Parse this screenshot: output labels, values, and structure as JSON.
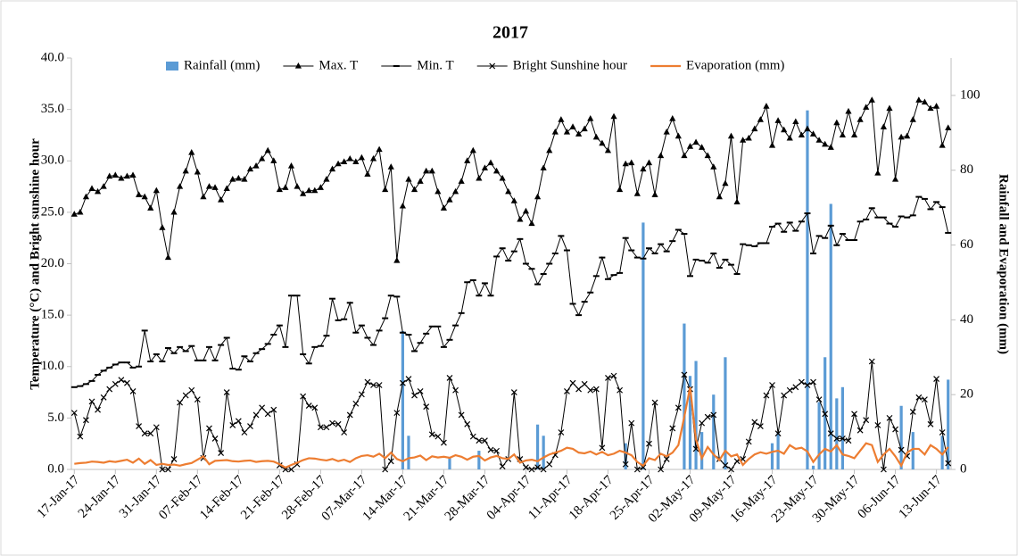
{
  "chart_data": {
    "type": "combo",
    "title": "2017",
    "y_label": "Temperature (°C) and Bright sunshine hour",
    "y2_label": "Rainfall and Evaporation (mm)",
    "legend": "top",
    "categories": [
      "17-Jan-17",
      null,
      null,
      null,
      null,
      null,
      null,
      "24-Jan-17",
      null,
      null,
      null,
      null,
      null,
      null,
      "31-Jan-17",
      null,
      null,
      null,
      null,
      null,
      null,
      "07-Feb-17",
      null,
      null,
      null,
      null,
      null,
      null,
      "14-Feb-17",
      null,
      null,
      null,
      null,
      null,
      null,
      "21-Feb-17",
      null,
      null,
      null,
      null,
      null,
      null,
      "28-Feb-17",
      null,
      null,
      null,
      null,
      null,
      null,
      "07-Mar-17",
      null,
      null,
      null,
      null,
      null,
      null,
      "14-Mar-17",
      null,
      null,
      null,
      null,
      null,
      null,
      "21-Mar-17",
      null,
      null,
      null,
      null,
      null,
      null,
      "28-Mar-17",
      null,
      null,
      null,
      null,
      null,
      null,
      "04-Apr-17",
      null,
      null,
      null,
      null,
      null,
      null,
      "11-Apr-17",
      null,
      null,
      null,
      null,
      null,
      null,
      "18-Apr-17",
      null,
      null,
      null,
      null,
      null,
      null,
      "25-Apr-17",
      null,
      null,
      null,
      null,
      null,
      null,
      "02-May-17",
      null,
      null,
      null,
      null,
      null,
      null,
      "09-May-17",
      null,
      null,
      null,
      null,
      null,
      null,
      "16-May-17",
      null,
      null,
      null,
      null,
      null,
      null,
      "23-May-17",
      null,
      null,
      null,
      null,
      null,
      null,
      "30-May-17",
      null,
      null,
      null,
      null,
      null,
      null,
      "06-Jun-17",
      null,
      null,
      null,
      null,
      null,
      null,
      "13-Jun-17",
      null,
      null
    ],
    "ylim": [
      0,
      40
    ],
    "yticks": [
      {
        "value": 0,
        "label": "0.0"
      },
      {
        "value": 5,
        "label": "5.0"
      },
      {
        "value": 10,
        "label": "10.0"
      },
      {
        "value": 15,
        "label": "15.0"
      },
      {
        "value": 20,
        "label": "20.0"
      },
      {
        "value": 25,
        "label": "25.0"
      },
      {
        "value": 30,
        "label": "30.0"
      },
      {
        "value": 35,
        "label": "35.0"
      },
      {
        "value": 40,
        "label": "40.0"
      }
    ],
    "y2lim": [
      0,
      110
    ],
    "y2ticks": [
      0,
      20,
      40,
      60,
      80,
      100
    ],
    "series": [
      {
        "name": "Rainfall (mm)",
        "type": "bar",
        "axis": "y2",
        "color": "#5b9bd5",
        "values": [
          0,
          0,
          0,
          0,
          0,
          0,
          0,
          0,
          0,
          0,
          0,
          0,
          0,
          0,
          0,
          0,
          0,
          0,
          0,
          0,
          0,
          0,
          0,
          0,
          0,
          0,
          0,
          0,
          0,
          0,
          0,
          0,
          0,
          0,
          0,
          0,
          0,
          0,
          0,
          0,
          0,
          0,
          0,
          0,
          0,
          0,
          0,
          0,
          0,
          0,
          0,
          0,
          0,
          0,
          0,
          0,
          37,
          9,
          0,
          0,
          0,
          0,
          0,
          0,
          3,
          0,
          0,
          0,
          0,
          5,
          0,
          0,
          0,
          0,
          0,
          0,
          0,
          0,
          0,
          12,
          9,
          0,
          0,
          0,
          0,
          0,
          0,
          0,
          0,
          0,
          0,
          0,
          0,
          0,
          7,
          0,
          0,
          66,
          0,
          0,
          0,
          0,
          0,
          0,
          39,
          25,
          29,
          10,
          0,
          20,
          0,
          30,
          0,
          0,
          0,
          0,
          0,
          0,
          0,
          7,
          10,
          0,
          0,
          0,
          0,
          96,
          1,
          18,
          30,
          71,
          19,
          22,
          0,
          0,
          0,
          0,
          0,
          0,
          0,
          0,
          0,
          17,
          0,
          10,
          0,
          0,
          0,
          0,
          9,
          24
        ]
      },
      {
        "name": "Max. T",
        "type": "line",
        "marker": "triangle",
        "color": "#000000",
        "values": [
          24.8,
          25,
          26.5,
          27.3,
          27,
          27.5,
          28.5,
          28.6,
          28.3,
          28.5,
          28.6,
          26.7,
          26.5,
          25.4,
          27.1,
          23.5,
          20.6,
          25,
          27.5,
          29,
          30.8,
          28.9,
          26.5,
          27.5,
          27.4,
          26.2,
          27.3,
          28.2,
          28.3,
          28.2,
          29.2,
          29.5,
          30.2,
          31,
          30,
          27.2,
          27.4,
          29.5,
          27.5,
          26.8,
          27.1,
          27.1,
          27.4,
          28.2,
          29.2,
          29.7,
          29.9,
          30.2,
          29.9,
          30.3,
          28.7,
          30.2,
          31.1,
          27.2,
          29.4,
          20.3,
          25.6,
          28.2,
          27.2,
          28,
          29,
          29,
          27,
          25.4,
          26.2,
          27,
          28,
          30,
          31,
          28.3,
          29.3,
          29.8,
          29,
          28.3,
          27,
          26.1,
          24.3,
          25.1,
          23.9,
          26.5,
          29.3,
          31,
          32.8,
          34,
          32.8,
          33.3,
          32.6,
          33.1,
          34.1,
          32.3,
          31.7,
          31,
          34.3,
          27.2,
          29.7,
          29.8,
          26.8,
          29.2,
          29.8,
          26.7,
          30.5,
          32.8,
          34.1,
          32.4,
          30.5,
          31.4,
          31.8,
          31.3,
          30.5,
          29.4,
          26.5,
          27.8,
          32.4,
          26,
          32,
          32.2,
          33.1,
          34,
          35.3,
          31.5,
          33.9,
          33,
          32.2,
          33.8,
          32.5,
          33.1,
          32.6,
          32,
          31.6,
          31.3,
          33.7,
          32.5,
          34.8,
          32.5,
          34,
          35.2,
          35.9,
          28.8,
          33.3,
          35.1,
          28.2,
          32.3,
          32.4,
          34,
          35.9,
          35.7,
          35.1,
          35.3,
          31.5,
          33.2
        ]
      },
      {
        "name": "Min. T",
        "type": "line",
        "marker": "dash",
        "color": "#000000",
        "values": [
          8,
          8.1,
          8.3,
          8.6,
          9.2,
          9.6,
          9.9,
          10.2,
          10.4,
          10.4,
          9.9,
          10,
          13.5,
          10.5,
          11.2,
          10.5,
          11.8,
          11.3,
          11.9,
          11.5,
          12,
          10.6,
          10.6,
          11.9,
          10.6,
          12.1,
          12.8,
          9.8,
          9.7,
          11,
          10.5,
          11.3,
          11.7,
          12.2,
          13.1,
          14,
          11.9,
          16.9,
          16.9,
          11.2,
          10.3,
          11.9,
          12,
          13,
          16.6,
          14.5,
          14.6,
          16.2,
          13.3,
          14,
          12.8,
          12.1,
          13.5,
          14.7,
          16.9,
          16.8,
          13.3,
          13.1,
          11.5,
          12.3,
          13.2,
          13.9,
          13.9,
          11.9,
          12.6,
          14,
          15.2,
          18.2,
          18.4,
          16.9,
          18.1,
          16.9,
          20.7,
          21.5,
          20.3,
          21.2,
          22.4,
          20,
          19.5,
          18,
          19,
          20,
          21,
          22.7,
          21.3,
          16.1,
          15,
          16.3,
          17.2,
          18.8,
          20.6,
          18.5,
          18.9,
          19.1,
          22.5,
          21.3,
          20.6,
          20.5,
          21.5,
          21,
          21.9,
          21.2,
          22.2,
          23.3,
          22.9,
          18.8,
          20.4,
          20.3,
          20.1,
          21,
          19.6,
          20.4,
          19.9,
          19,
          21.9,
          21.8,
          21.7,
          22,
          22,
          23.6,
          23.9,
          23.1,
          24,
          23.2,
          24.1,
          24.9,
          21,
          22.7,
          22.5,
          23.7,
          21.8,
          22.9,
          22.3,
          22.3,
          24.1,
          24.3,
          25.4,
          24.5,
          24.5,
          23.9,
          23.6,
          24.6,
          24.5,
          24.7,
          26.5,
          26.3,
          25.3,
          26,
          25.5,
          23
        ]
      },
      {
        "name": "Bright Sunshine hour",
        "type": "line",
        "marker": "cross",
        "color": "#000000",
        "values": [
          5.5,
          3.2,
          4.8,
          6.6,
          5.8,
          7,
          7.8,
          8.3,
          8.7,
          8.4,
          7.6,
          4.2,
          3.5,
          3.5,
          4.1,
          0,
          0,
          1,
          6.5,
          7.2,
          7.7,
          6.8,
          1.1,
          4,
          3,
          1.6,
          7.5,
          4.3,
          4.7,
          3.6,
          4.2,
          5.3,
          6,
          5.4,
          5.8,
          0.4,
          0,
          0,
          0.5,
          7.1,
          6.2,
          6,
          4.1,
          4.1,
          4.5,
          4.4,
          3.6,
          5.3,
          6.4,
          7.3,
          8.5,
          8.2,
          8.2,
          0,
          0.8,
          5.5,
          8.4,
          8.8,
          7.2,
          7.6,
          6.1,
          3.4,
          3.2,
          2.6,
          8.9,
          7.7,
          5.3,
          4.4,
          3.2,
          2.8,
          2.8,
          1.9,
          1.8,
          0.3,
          1,
          7.5,
          1,
          0.2,
          0,
          0.2,
          0,
          0.5,
          1.4,
          3.6,
          7.6,
          8.4,
          7.8,
          8.3,
          7.7,
          7.8,
          2.1,
          8.9,
          9.1,
          7.7,
          0.5,
          4.5,
          0,
          0.2,
          2.5,
          6.5,
          0,
          1,
          4,
          6,
          9.2,
          7.8,
          2,
          4.5,
          5.1,
          5.3,
          1,
          0.4,
          0,
          0.8,
          1,
          2.7,
          4.6,
          4.2,
          7.2,
          8.2,
          3.5,
          7.2,
          7.7,
          8,
          8.5,
          8.2,
          8.5,
          6.8,
          5.4,
          3.5,
          3,
          3,
          2.8,
          5.4,
          3.8,
          4.8,
          10.5,
          4.3,
          0,
          5,
          3.9,
          1.9,
          1.3,
          5.6,
          7,
          6.8,
          4.4,
          8.8,
          3.6,
          0.6
        ]
      },
      {
        "name": "Evaporation (mm)",
        "type": "line",
        "axis": "y2",
        "marker": "none",
        "color": "#ed7d31",
        "values": [
          1.5,
          1.7,
          1.8,
          2.1,
          2,
          1.8,
          2.2,
          2,
          2.3,
          2.6,
          1.8,
          2.9,
          1.5,
          2.5,
          1.2,
          1.5,
          1.2,
          1.3,
          1,
          1.4,
          1.7,
          2.6,
          3.5,
          1.4,
          2.3,
          2.4,
          2.5,
          2.2,
          2.1,
          2.3,
          2.4,
          2,
          2.2,
          2.3,
          2.1,
          1.4,
          0.5,
          1.2,
          1.8,
          2.5,
          3,
          2.9,
          2.6,
          2.4,
          2.8,
          2.2,
          2.6,
          2,
          3,
          3.6,
          3.8,
          3.4,
          4.2,
          3,
          4.5,
          2.8,
          2.2,
          3,
          3.2,
          3.7,
          2.5,
          3.5,
          3.2,
          3.4,
          3.1,
          3.8,
          3.4,
          2.6,
          3.4,
          3.6,
          2.4,
          3.2,
          3.6,
          3,
          2.8,
          4,
          1.8,
          2.4,
          2.6,
          2.2,
          3.2,
          4,
          4.5,
          5,
          5.8,
          5.5,
          4.5,
          4.3,
          4.8,
          4,
          4.7,
          3.8,
          4.2,
          5,
          4.5,
          3.8,
          2,
          1,
          3,
          2.5,
          4.2,
          3.5,
          4.5,
          6.5,
          14,
          22,
          8,
          3,
          6,
          4,
          2.5,
          5,
          3.5,
          4,
          1.2,
          2.8,
          4,
          4.6,
          4.2,
          4.7,
          5,
          4.2,
          6.5,
          5.5,
          5.8,
          4.8,
          2,
          4,
          5.5,
          4.8,
          6.5,
          4,
          3.6,
          3,
          5,
          7,
          6.5,
          2,
          4,
          5.5,
          3.5,
          1,
          4.5,
          5.5,
          5.5,
          4,
          6.5,
          5.5,
          4,
          6
        ]
      }
    ]
  }
}
